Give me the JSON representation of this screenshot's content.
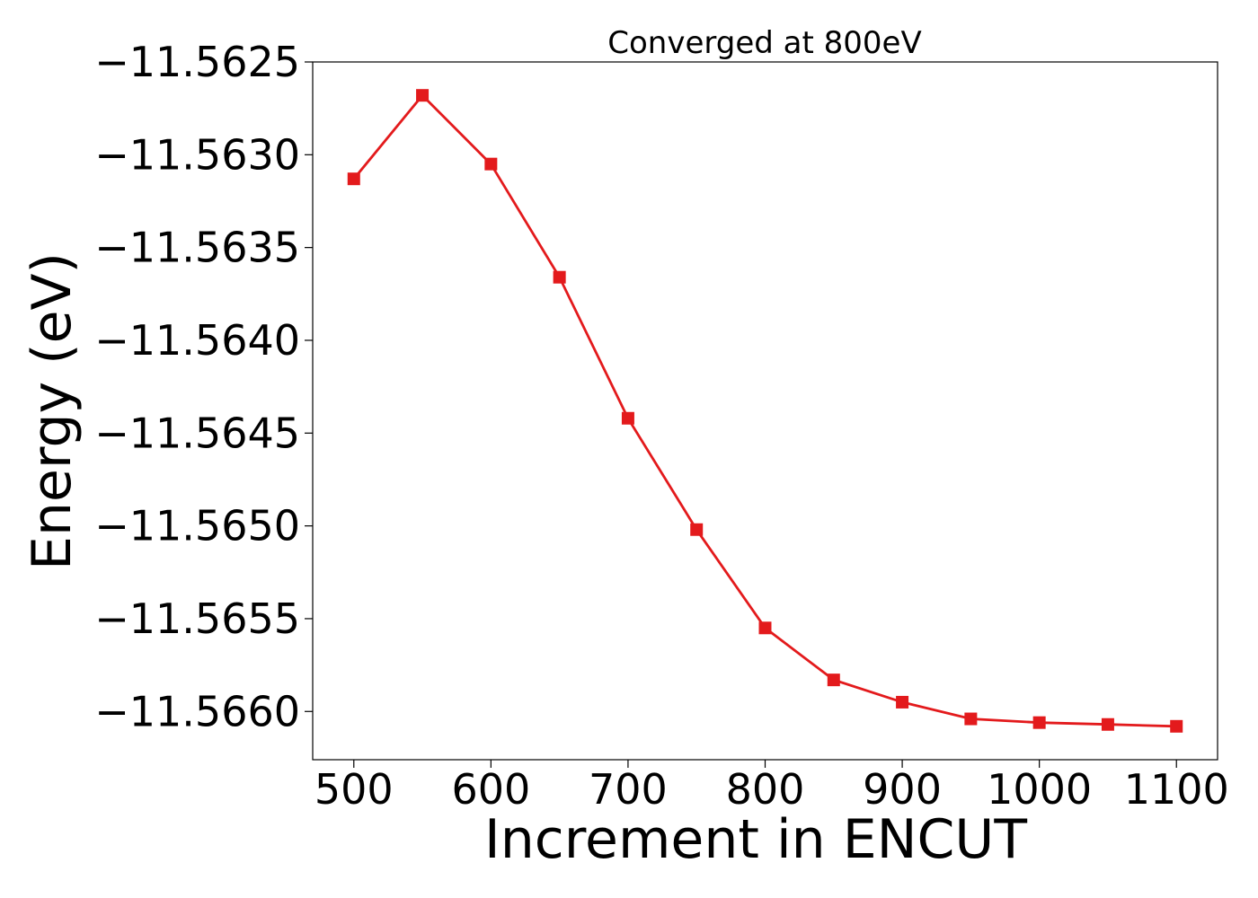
{
  "chart_data": {
    "type": "line",
    "title": "Converged at 800eV",
    "xlabel": "Increment in ENCUT",
    "ylabel": "Energy (eV)",
    "x": [
      500,
      550,
      600,
      650,
      700,
      750,
      800,
      850,
      900,
      950,
      1000,
      1050,
      1100
    ],
    "series": [
      {
        "values": [
          -11.56313,
          -11.56268,
          -11.56305,
          -11.56366,
          -11.56442,
          -11.56502,
          -11.56555,
          -11.56583,
          -11.56595,
          -11.56604,
          -11.56606,
          -11.56607,
          -11.56608
        ],
        "color": "#e31a1c",
        "marker": "square"
      }
    ],
    "xlim": [
      470,
      1130
    ],
    "ylim": [
      -11.56626,
      -11.5625
    ],
    "xticks": [
      500,
      600,
      700,
      800,
      900,
      1000,
      1100
    ],
    "xtick_labels": [
      "500",
      "600",
      "700",
      "800",
      "900",
      "1000",
      "1100"
    ],
    "yticks": [
      -11.5625,
      -11.563,
      -11.5635,
      -11.564,
      -11.5645,
      -11.565,
      -11.5655,
      -11.566
    ],
    "ytick_labels": [
      "−11.5625",
      "−11.5630",
      "−11.5635",
      "−11.5640",
      "−11.5645",
      "−11.5650",
      "−11.5655",
      "−11.5660"
    ],
    "grid": false,
    "legend": "none"
  }
}
